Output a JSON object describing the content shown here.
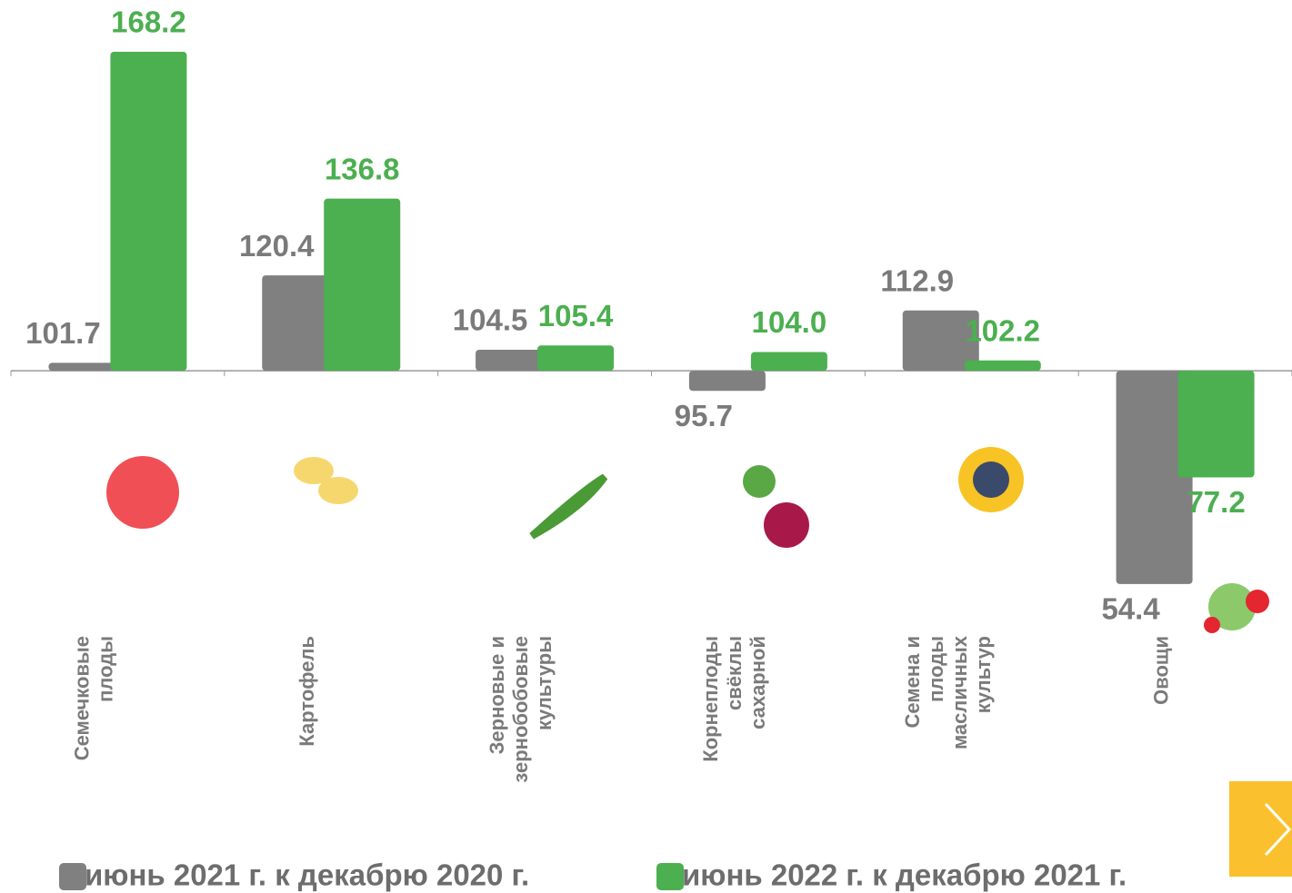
{
  "chart_data": {
    "type": "bar",
    "categories": [
      "Семечковые\nплоды",
      "Картофель",
      "Зерновые и\nзернобобовые\nкультуры",
      "Корнеплоды\nсвёклы\nсахарной",
      "Семена и\nплоды\nмасличных\nкультур",
      "Овощи"
    ],
    "series": [
      {
        "name": "июнь 2021 г. к декабрю 2020 г.",
        "color": "#808080",
        "label_color": "#7a7a7a",
        "values": [
          101.7,
          120.4,
          104.5,
          95.7,
          112.9,
          54.4
        ],
        "value_labels": [
          "101.7",
          "120.4",
          "104.5",
          "95.7",
          "112.9",
          "54.4"
        ]
      },
      {
        "name": "июнь 2022 г. к декабрю 2021 г.",
        "color": "#4caf50",
        "label_color": "#4caf50",
        "values": [
          168.2,
          136.8,
          105.4,
          104.0,
          102.2,
          77.2
        ],
        "value_labels": [
          "168.2",
          "136.8",
          "105.4",
          "104.0",
          "102.2",
          "77.2"
        ]
      }
    ],
    "ylim": [
      40,
      175
    ],
    "bar_base": 100,
    "legend": "bottom"
  }
}
